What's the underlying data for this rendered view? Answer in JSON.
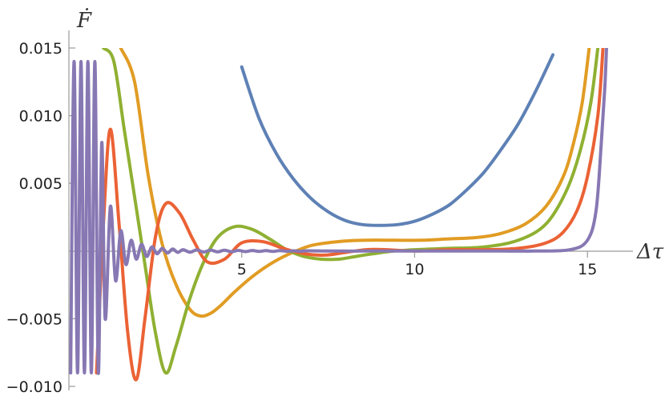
{
  "chart_data": {
    "type": "line",
    "xlabel": "Δτ",
    "ylabel": "Ḟ",
    "xlim": [
      0,
      16.2
    ],
    "ylim": [
      -0.01,
      0.015
    ],
    "x_ticks": [
      5,
      10,
      15
    ],
    "x_tick_labels": [
      "5",
      "10",
      "15"
    ],
    "y_ticks": [
      -0.01,
      -0.005,
      0.005,
      0.01,
      0.015
    ],
    "y_tick_labels": [
      "−0.010",
      "−0.005",
      "0.005",
      "0.010",
      "0.015"
    ],
    "grid": false,
    "series": [
      {
        "color": "#5E81B5",
        "x": [
          5.0,
          5.5,
          6.0,
          6.5,
          7.0,
          7.5,
          8.0,
          8.5,
          9.0,
          9.5,
          10.0,
          10.5,
          11.0,
          11.5,
          12.0,
          12.5,
          13.0,
          13.5,
          14.0
        ],
        "y": [
          0.0136,
          0.0098,
          0.0072,
          0.0053,
          0.0039,
          0.0029,
          0.00225,
          0.00195,
          0.0019,
          0.00195,
          0.0022,
          0.0027,
          0.0034,
          0.0045,
          0.0058,
          0.0075,
          0.0094,
          0.0118,
          0.0145
        ]
      },
      {
        "color": "#E19C24",
        "x": [
          1.5,
          1.9,
          2.3,
          2.7,
          3.1,
          3.5,
          3.8,
          4.1,
          4.4,
          4.8,
          5.3,
          5.8,
          6.3,
          7.0,
          7.8,
          8.6,
          9.4,
          10.2,
          11.0,
          11.8,
          12.5,
          13.2,
          13.8,
          14.3,
          14.6,
          14.85,
          15.05
        ],
        "y": [
          0.015,
          0.0125,
          0.0055,
          0.0005,
          -0.0025,
          -0.0043,
          -0.0048,
          -0.0046,
          -0.004,
          -0.003,
          -0.0019,
          -0.001,
          -0.0003,
          0.0004,
          0.0007,
          0.0008,
          0.0008,
          0.0008,
          0.0009,
          0.001,
          0.0013,
          0.002,
          0.0033,
          0.0055,
          0.008,
          0.011,
          0.015
        ]
      },
      {
        "color": "#8FB032",
        "x": [
          1.0,
          1.3,
          1.6,
          1.9,
          2.2,
          2.5,
          2.8,
          3.1,
          3.5,
          3.9,
          4.3,
          4.8,
          5.3,
          5.8,
          6.3,
          6.8,
          7.3,
          7.8,
          8.3,
          8.8,
          9.4,
          10.0,
          11.0,
          12.0,
          13.0,
          13.8,
          14.4,
          14.8,
          15.1,
          15.3
        ],
        "y": [
          0.015,
          0.014,
          0.009,
          0.004,
          -0.001,
          -0.006,
          -0.009,
          -0.007,
          -0.0035,
          -0.0008,
          0.001,
          0.0018,
          0.0016,
          0.0009,
          0.0001,
          -0.0004,
          -0.0006,
          -0.0006,
          -0.0004,
          -0.0002,
          0.0,
          0.0001,
          0.0002,
          0.0003,
          0.0008,
          0.002,
          0.0045,
          0.0075,
          0.011,
          0.015
        ]
      },
      {
        "color": "#EB6235",
        "x": [
          0.8,
          1.0,
          1.2,
          1.45,
          1.7,
          1.95,
          2.2,
          2.5,
          2.8,
          3.2,
          3.6,
          4.0,
          4.5,
          5.0,
          5.6,
          6.2,
          6.8,
          7.4,
          8.0,
          8.6,
          9.2,
          10.0,
          11.0,
          12.0,
          13.0,
          13.8,
          14.3,
          14.7,
          15.0,
          15.3,
          15.45
        ],
        "y": [
          -0.009,
          0.002,
          0.009,
          0.002,
          -0.006,
          -0.0095,
          -0.005,
          0.001,
          0.0035,
          0.0028,
          0.0008,
          -0.0008,
          -0.0006,
          0.0006,
          0.0007,
          0.0002,
          -0.0002,
          -0.0003,
          -0.0001,
          0.0001,
          0.0001,
          0.0,
          0.0001,
          0.0001,
          0.0002,
          0.0006,
          0.0014,
          0.003,
          0.0055,
          0.01,
          0.015
        ]
      },
      {
        "color": "#8778B3",
        "x": [
          0.05,
          0.15,
          0.25,
          0.35,
          0.45,
          0.55,
          0.65,
          0.75,
          0.85,
          0.95,
          1.05,
          1.2,
          1.35,
          1.5,
          1.65,
          1.8,
          1.95,
          2.1,
          2.25,
          2.4,
          2.55,
          2.7,
          2.85,
          3.0,
          3.15,
          3.3,
          3.5,
          3.7,
          3.9,
          4.1,
          4.3,
          4.5,
          4.7,
          4.9,
          5.1,
          5.3,
          5.5,
          5.7,
          5.9,
          6.1,
          6.3,
          6.5,
          6.7,
          6.9,
          7.5,
          8.5,
          9.5,
          10.5,
          11.5,
          12.5,
          13.5,
          14.5,
          15.0,
          15.25,
          15.4,
          15.5,
          15.55
        ],
        "y": [
          -0.009,
          0.014,
          -0.009,
          0.014,
          -0.009,
          0.014,
          -0.009,
          0.014,
          -0.009,
          0.008,
          -0.005,
          0.0033,
          -0.0022,
          0.0015,
          -0.001,
          0.0008,
          -0.0006,
          0.0005,
          -0.0004,
          0.0003,
          -0.0002,
          0.0002,
          -0.00015,
          0.00015,
          -0.0001,
          0.0001,
          -8e-05,
          8e-05,
          -7e-05,
          7e-05,
          -6e-05,
          6e-05,
          -5e-05,
          5e-05,
          -4e-05,
          4e-05,
          -3e-05,
          3e-05,
          -3e-05,
          3e-05,
          -2e-05,
          2e-05,
          -2e-05,
          2e-05,
          0.0,
          0.0,
          0.0,
          0.0,
          0.0,
          0.0,
          0.0,
          0.0001,
          0.0008,
          0.003,
          0.008,
          0.012,
          0.015
        ]
      }
    ]
  }
}
